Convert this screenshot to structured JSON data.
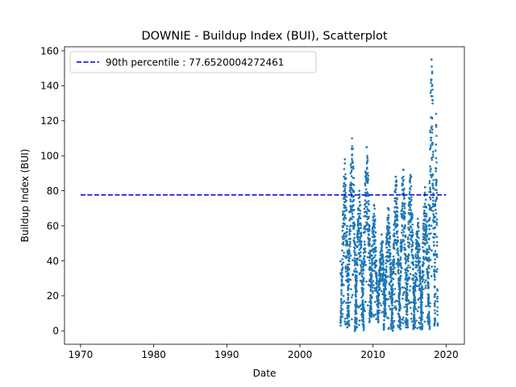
{
  "chart_data": {
    "type": "scatter",
    "title": "DOWNIE - Buildup Index (BUI), Scatterplot",
    "xlabel": "Date",
    "ylabel": "Buildup Index (BUI)",
    "xlim": [
      1967.8,
      2022.5
    ],
    "ylim": [
      -7.7,
      162.3
    ],
    "x_ticks": [
      1970,
      1980,
      1990,
      2000,
      2010,
      2020
    ],
    "x_tick_labels": [
      "1970",
      "1980",
      "1990",
      "2000",
      "2010",
      "2020"
    ],
    "y_ticks": [
      0,
      20,
      40,
      60,
      80,
      100,
      120,
      140,
      160
    ],
    "y_tick_labels": [
      "0",
      "20",
      "40",
      "60",
      "80",
      "100",
      "120",
      "140",
      "160"
    ],
    "grid": false,
    "legend_position": "top-left",
    "reference_line": {
      "label": "90th percentile : 77.6520004272461",
      "y": 77.6520004272461,
      "x_range": [
        1970,
        2020
      ],
      "color": "#0000cc",
      "style": "dashed"
    },
    "point_color": "#1f77b4",
    "seasons": [
      {
        "year": 2006,
        "start": 2005.55,
        "end": 2006.75,
        "min": 3,
        "max": 98
      },
      {
        "year": 2007,
        "start": 2006.45,
        "end": 2007.8,
        "min": 2,
        "max": 110
      },
      {
        "year": 2008,
        "start": 2007.5,
        "end": 2008.75,
        "min": 0,
        "max": 80
      },
      {
        "year": 2009,
        "start": 2008.5,
        "end": 2009.8,
        "min": 8,
        "max": 105
      },
      {
        "year": 2010,
        "start": 2009.5,
        "end": 2010.75,
        "min": 5,
        "max": 72
      },
      {
        "year": 2011,
        "start": 2010.6,
        "end": 2011.75,
        "min": 10,
        "max": 55
      },
      {
        "year": 2012,
        "start": 2011.45,
        "end": 2012.75,
        "min": 0,
        "max": 70
      },
      {
        "year": 2013,
        "start": 2012.5,
        "end": 2013.75,
        "min": 1,
        "max": 88
      },
      {
        "year": 2014,
        "start": 2013.5,
        "end": 2014.75,
        "min": 2,
        "max": 92
      },
      {
        "year": 2015,
        "start": 2014.5,
        "end": 2015.75,
        "min": 2,
        "max": 89
      },
      {
        "year": 2016,
        "start": 2015.5,
        "end": 2016.75,
        "min": 1,
        "max": 64
      },
      {
        "year": 2017,
        "start": 2016.5,
        "end": 2017.75,
        "min": 1,
        "max": 82
      },
      {
        "year": 2018,
        "start": 2017.5,
        "end": 2018.5,
        "min": 5,
        "max": 155
      },
      {
        "year": 2019,
        "start": 2018.4,
        "end": 2018.85,
        "min": 3,
        "max": 124
      }
    ]
  }
}
